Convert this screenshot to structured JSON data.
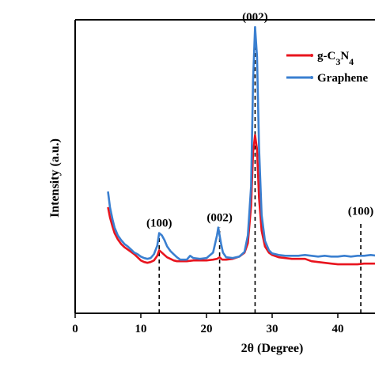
{
  "chart_data": {
    "type": "line",
    "xlabel": "2θ (Degree)",
    "ylabel": "Intensity (a.u.)",
    "xlim": [
      0,
      46
    ],
    "x_ticks": [
      0,
      10,
      20,
      30,
      40
    ],
    "y_ticks": "none",
    "grid": false,
    "legend": {
      "placement": "top-right",
      "entries": [
        {
          "parts": [
            {
              "t": "g-C"
            },
            {
              "t": "3",
              "sub": true
            },
            {
              "t": "N"
            },
            {
              "t": "4",
              "sub": true
            }
          ],
          "color": "#e8141e"
        },
        {
          "parts": [
            {
              "t": "Graphene"
            }
          ],
          "color": "#3a7fd0"
        }
      ]
    },
    "series": [
      {
        "color": "#e8141e",
        "x": [
          5,
          5.3,
          5.7,
          6,
          6.5,
          7,
          7.5,
          8,
          8.5,
          9,
          9.5,
          10,
          10.5,
          11,
          11.5,
          12,
          12.5,
          12.8,
          13.2,
          13.6,
          14,
          14.5,
          15,
          15.5,
          16,
          17,
          18,
          19,
          20,
          21,
          21.6,
          22,
          22.4,
          23,
          24,
          25,
          25.8,
          26.3,
          26.8,
          27.1,
          27.4,
          27.7,
          28,
          28.4,
          28.9,
          29.5,
          30,
          31,
          32,
          33,
          34,
          35,
          36,
          37,
          38,
          39,
          40,
          41,
          42,
          43,
          44,
          45,
          46
        ],
        "y": [
          88,
          75,
          63,
          55,
          47,
          41,
          37,
          34,
          31,
          28,
          24,
          20,
          18,
          17,
          18,
          20,
          26,
          33,
          30,
          27,
          24,
          22,
          20,
          19,
          19,
          19,
          20,
          20,
          20,
          21,
          22,
          24,
          21,
          21,
          22,
          25,
          30,
          42,
          90,
          158,
          180,
          162,
          100,
          58,
          38,
          30,
          27,
          24,
          23,
          22,
          22,
          22,
          19,
          18,
          17,
          16,
          15,
          15,
          15,
          15,
          16,
          16,
          16
        ]
      },
      {
        "color": "#3a7fd0",
        "x": [
          5,
          5.3,
          5.7,
          6,
          6.5,
          7,
          7.5,
          8,
          8.5,
          9,
          9.5,
          10,
          10.5,
          11,
          11.5,
          12,
          12.5,
          12.8,
          13.2,
          13.6,
          14,
          14.5,
          15,
          15.5,
          16,
          17,
          17.5,
          18,
          19,
          20,
          21,
          21.6,
          21.8,
          22,
          22.2,
          22.5,
          23,
          24,
          25,
          25.8,
          26.3,
          26.8,
          27.1,
          27.4,
          27.7,
          28,
          28.4,
          28.9,
          29.5,
          30,
          31,
          32,
          33,
          34,
          35,
          36,
          37,
          38,
          39,
          40,
          41,
          42,
          43,
          44,
          45,
          46
        ],
        "y": [
          108,
          88,
          72,
          62,
          52,
          46,
          41,
          38,
          34,
          30,
          28,
          25,
          23,
          22,
          23,
          28,
          39,
          55,
          52,
          46,
          38,
          32,
          28,
          24,
          21,
          21,
          26,
          23,
          22,
          23,
          30,
          52,
          62,
          52,
          42,
          30,
          24,
          23,
          25,
          31,
          52,
          115,
          250,
          318,
          280,
          165,
          78,
          45,
          33,
          29,
          27,
          26,
          26,
          26,
          27,
          26,
          25,
          26,
          25,
          25,
          26,
          25,
          26,
          26,
          27,
          26
        ]
      }
    ],
    "annotations": [
      {
        "label": "(100)",
        "x": 12.8,
        "line_from": 0,
        "line_to": 55
      },
      {
        "label": "(002)",
        "x": 22.0,
        "line_from": 0,
        "line_to": 62
      },
      {
        "label": "(002)",
        "x": 27.4,
        "line_from": 0,
        "line_to": 318
      },
      {
        "label": "(100)",
        "x": 43.5,
        "line_from": 0,
        "line_to": 70
      }
    ]
  }
}
